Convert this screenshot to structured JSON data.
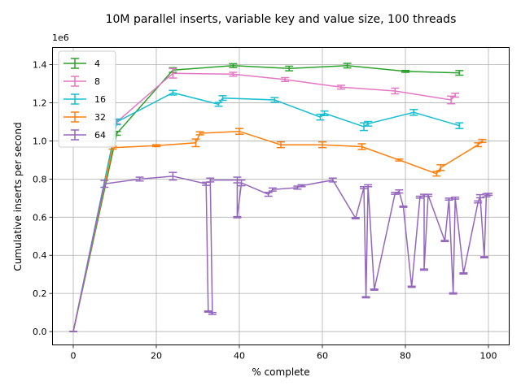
{
  "chart_data": {
    "type": "line",
    "title": "10M parallel inserts, variable key and value size, 100 threads",
    "xlabel": "% complete",
    "ylabel": "Cumulative inserts per second",
    "y_offset_label": "1e6",
    "xlim": [
      -5,
      105
    ],
    "ylim": [
      -0.07,
      1.49
    ],
    "x_ticks": [
      "0",
      "20",
      "40",
      "60",
      "80",
      "100"
    ],
    "y_ticks": [
      "0.0",
      "0.2",
      "0.4",
      "0.6",
      "0.8",
      "1.0",
      "1.2",
      "1.4"
    ],
    "grid": true,
    "legend_position": "upper-left",
    "series": [
      {
        "name": "4",
        "color": "#2ca02c",
        "points": [
          [
            0,
            0.0,
            0.0
          ],
          [
            10.5,
            1.04,
            0.01
          ],
          [
            24,
            1.372,
            0.012
          ],
          [
            38.5,
            1.395,
            0.01
          ],
          [
            52,
            1.38,
            0.012
          ],
          [
            66,
            1.395,
            0.012
          ],
          [
            80,
            1.365,
            0.005
          ],
          [
            93,
            1.357,
            0.012
          ]
        ]
      },
      {
        "name": "8",
        "color": "#e377c2",
        "points": [
          [
            0,
            0.0,
            0.0
          ],
          [
            10.5,
            1.1,
            0.01
          ],
          [
            24,
            1.355,
            0.025
          ],
          [
            38.5,
            1.35,
            0.01
          ],
          [
            51,
            1.322,
            0.01
          ],
          [
            64.5,
            1.282,
            0.01
          ],
          [
            77.5,
            1.262,
            0.015
          ],
          [
            91,
            1.215,
            0.02
          ],
          [
            92,
            1.24,
            0.01
          ]
        ]
      },
      {
        "name": "16",
        "color": "#17becf",
        "points": [
          [
            0,
            0.0,
            0.0
          ],
          [
            10.5,
            1.1,
            0.015
          ],
          [
            24,
            1.253,
            0.012
          ],
          [
            35,
            1.192,
            0.01
          ],
          [
            36,
            1.225,
            0.012
          ],
          [
            48.5,
            1.215,
            0.012
          ],
          [
            59.5,
            1.125,
            0.015
          ],
          [
            60.5,
            1.145,
            0.012
          ],
          [
            70,
            1.075,
            0.02
          ],
          [
            71,
            1.09,
            0.012
          ],
          [
            82,
            1.15,
            0.015
          ],
          [
            93,
            1.08,
            0.015
          ]
        ]
      },
      {
        "name": "32",
        "color": "#ff7f0e",
        "points": [
          [
            0,
            0.0,
            0.0
          ],
          [
            9.5,
            0.965,
            0.008
          ],
          [
            20,
            0.975,
            0.005
          ],
          [
            29.5,
            0.99,
            0.02
          ],
          [
            30.5,
            1.04,
            0.008
          ],
          [
            40,
            1.05,
            0.015
          ],
          [
            50,
            0.98,
            0.015
          ],
          [
            60,
            0.98,
            0.015
          ],
          [
            69.5,
            0.97,
            0.015
          ],
          [
            78.5,
            0.9,
            0.005
          ],
          [
            87.5,
            0.828,
            0.012
          ],
          [
            88.5,
            0.86,
            0.015
          ],
          [
            97.5,
            0.98,
            0.01
          ],
          [
            98.5,
            1.0,
            0.008
          ]
        ]
      },
      {
        "name": "64",
        "color": "#9467bd",
        "points": [
          [
            0,
            0.0,
            0.0
          ],
          [
            7.5,
            0.775,
            0.018
          ],
          [
            16,
            0.8,
            0.01
          ],
          [
            24,
            0.815,
            0.02
          ],
          [
            32,
            0.775,
            0.008
          ],
          [
            32.5,
            0.105,
            0.003
          ],
          [
            33.5,
            0.095,
            0.005
          ],
          [
            33,
            0.795,
            0.01
          ],
          [
            39.5,
            0.795,
            0.015
          ],
          [
            39.5,
            0.6,
            0.003
          ],
          [
            40.5,
            0.78,
            0.015
          ],
          [
            47,
            0.72,
            0.01
          ],
          [
            48,
            0.745,
            0.008
          ],
          [
            54,
            0.755,
            0.008
          ],
          [
            55,
            0.765,
            0.005
          ],
          [
            62.5,
            0.795,
            0.01
          ],
          [
            68,
            0.595,
            0.003
          ],
          [
            70,
            0.755,
            0.005
          ],
          [
            70.5,
            0.18,
            0.003
          ],
          [
            71,
            0.765,
            0.005
          ],
          [
            72.5,
            0.22,
            0.003
          ],
          [
            77.5,
            0.725,
            0.005
          ],
          [
            78.5,
            0.735,
            0.008
          ],
          [
            79.5,
            0.655,
            0.003
          ],
          [
            81.5,
            0.235,
            0.003
          ],
          [
            83.5,
            0.705,
            0.005
          ],
          [
            84.5,
            0.715,
            0.005
          ],
          [
            84.5,
            0.325,
            0.003
          ],
          [
            85.5,
            0.715,
            0.005
          ],
          [
            89.5,
            0.475,
            0.003
          ],
          [
            90.5,
            0.695,
            0.005
          ],
          [
            91.5,
            0.2,
            0.003
          ],
          [
            92,
            0.7,
            0.005
          ],
          [
            94,
            0.305,
            0.003
          ],
          [
            97.5,
            0.68,
            0.005
          ],
          [
            98,
            0.71,
            0.008
          ],
          [
            99,
            0.39,
            0.003
          ],
          [
            99.5,
            0.715,
            0.008
          ],
          [
            100,
            0.72,
            0.005
          ]
        ]
      }
    ]
  }
}
